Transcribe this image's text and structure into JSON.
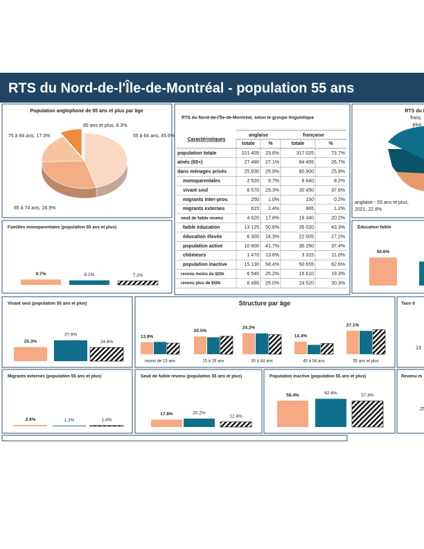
{
  "header": {
    "title": "RTS du Nord-de-l'Île-de-Montréal - population 55 ans"
  },
  "pie": {
    "title": "Population anglophone de 55 ans et plus par âge",
    "labels": [
      "55 à 64 ans, 45.6%",
      "65 à 74 ans, 28.9%",
      "75 à 84 ans, 17.3%",
      "85 ans et plus, 8.3%"
    ],
    "values": [
      45.6,
      28.9,
      17.3,
      8.3
    ],
    "colors": [
      "#fbd8c2",
      "#f2ae86",
      "#f7c4a0",
      "#ee8a3e"
    ]
  },
  "right_pie": {
    "title_lines": [
      "RTS du N",
      "franç",
      "plus"
    ],
    "label_lines": [
      "anglaise - 55 ans et plus,",
      "2021, 22.8%"
    ]
  },
  "table": {
    "title": "RTS du Nord-de-l'Île-de-Montréal, selon le groupe linguistique",
    "header": [
      "Caractéristiques",
      "anglaise",
      "française"
    ],
    "subheader": [
      "totale",
      "%",
      "totale",
      "%"
    ],
    "rows": [
      [
        "population totale",
        "101 405",
        "23.6%",
        "317 025",
        "73.7%"
      ],
      [
        "aînés (65+)",
        "27 480",
        "27.1%",
        "84 495",
        "26.7%"
      ],
      [
        "dans ménages privés",
        "25,930",
        "25.9%",
        "80,900",
        "25.9%"
      ],
      [
        "monoparentales",
        "2 520",
        "9.7%",
        "6 640",
        "8.2%"
      ],
      [
        "vivant seul",
        "6 570",
        "25.3%",
        "30 450",
        "37.6%"
      ],
      [
        "migrants inter-prov.",
        "250",
        "1.0%",
        "150",
        "0.2%"
      ],
      [
        "migrants externes",
        "615",
        "2.4%",
        "965",
        "1.2%"
      ],
      [
        "seuil de faible revenu",
        "4 620",
        "17.8%",
        "16 340",
        "20.2%"
      ],
      [
        "faible éducation",
        "13 125",
        "50.6%",
        "35 020",
        "43.3%"
      ],
      [
        "éducation élevée",
        "6 305",
        "24.3%",
        "22 005",
        "27.2%"
      ],
      [
        "population active",
        "10 800",
        "41.7%",
        "30 250",
        "37.4%"
      ],
      [
        "chômeurs",
        "1 470",
        "13.6%",
        "3 315",
        "11.0%"
      ],
      [
        "population inactive",
        "15 130",
        "58.4%",
        "50 655",
        "62.6%"
      ],
      [
        "revenu moins de $20k",
        "6 545",
        "25.2%",
        "15 610",
        "19.3%"
      ],
      [
        "revenu plus de $50k",
        "6 485",
        "25.0%",
        "24 520",
        "30.3%"
      ]
    ]
  },
  "colors": [
    "#f6a982",
    "#0f6f8b",
    "hatch"
  ],
  "panels": [
    {
      "title": "Familles monoparentales (population 55 ans et plus)",
      "values": [
        9.7,
        8.2,
        7.3
      ],
      "value_labels": [
        "9.7%",
        "8.2%",
        "7.3%"
      ]
    },
    {
      "title": "Vivant seul (population 55 ans et plus)",
      "values": [
        25.3,
        37.6,
        24.6
      ],
      "value_labels": [
        "25.3%",
        "37.6%",
        "24.6%"
      ]
    },
    {
      "title": "Migrants externes (population 55 ans et plus)",
      "values": [
        2.4,
        1.2,
        1.4
      ],
      "value_labels": [
        "2.4%",
        "1.2%",
        "1.4%"
      ]
    },
    {
      "title": "Seuil de faible revenu (population 55 ans et plus)",
      "values": [
        17.8,
        20.2,
        12.4
      ],
      "value_labels": [
        "17.8%",
        "20.2%",
        "12.4%"
      ]
    },
    {
      "title": "Population inactive (population 55 ans et plus)",
      "values": [
        58.4,
        62.6,
        57.8
      ],
      "value_labels": [
        "58.4%",
        "62.6%",
        "57.8%"
      ]
    },
    {
      "title": "Éducation faible",
      "values": [
        50.6,
        43.3
      ],
      "value_labels": [
        "50.6%"
      ]
    }
  ],
  "fragments": [
    {
      "title": "Taux d",
      "text": "13"
    },
    {
      "title": "Revenu m",
      "text": "25"
    }
  ],
  "structure": {
    "title": "Structure par âge",
    "categories": [
      "moins de 15 ans",
      "15 à 29 ans",
      "30 à 44 ans",
      "45 à 54 ans",
      "55 ans et plus"
    ],
    "series": [
      {
        "values": [
          13.8,
          20.5,
          24.2,
          14.4,
          27.1
        ],
        "value_labels": [
          "13.8%",
          "20.5%",
          "24.2%",
          "14.4%",
          "27.1%"
        ]
      },
      {
        "values": [
          14.2,
          19.5,
          24.0,
          10.8,
          27.0
        ]
      },
      {
        "values": [
          12.8,
          20.8,
          22.6,
          12.4,
          28.4
        ]
      }
    ]
  }
}
